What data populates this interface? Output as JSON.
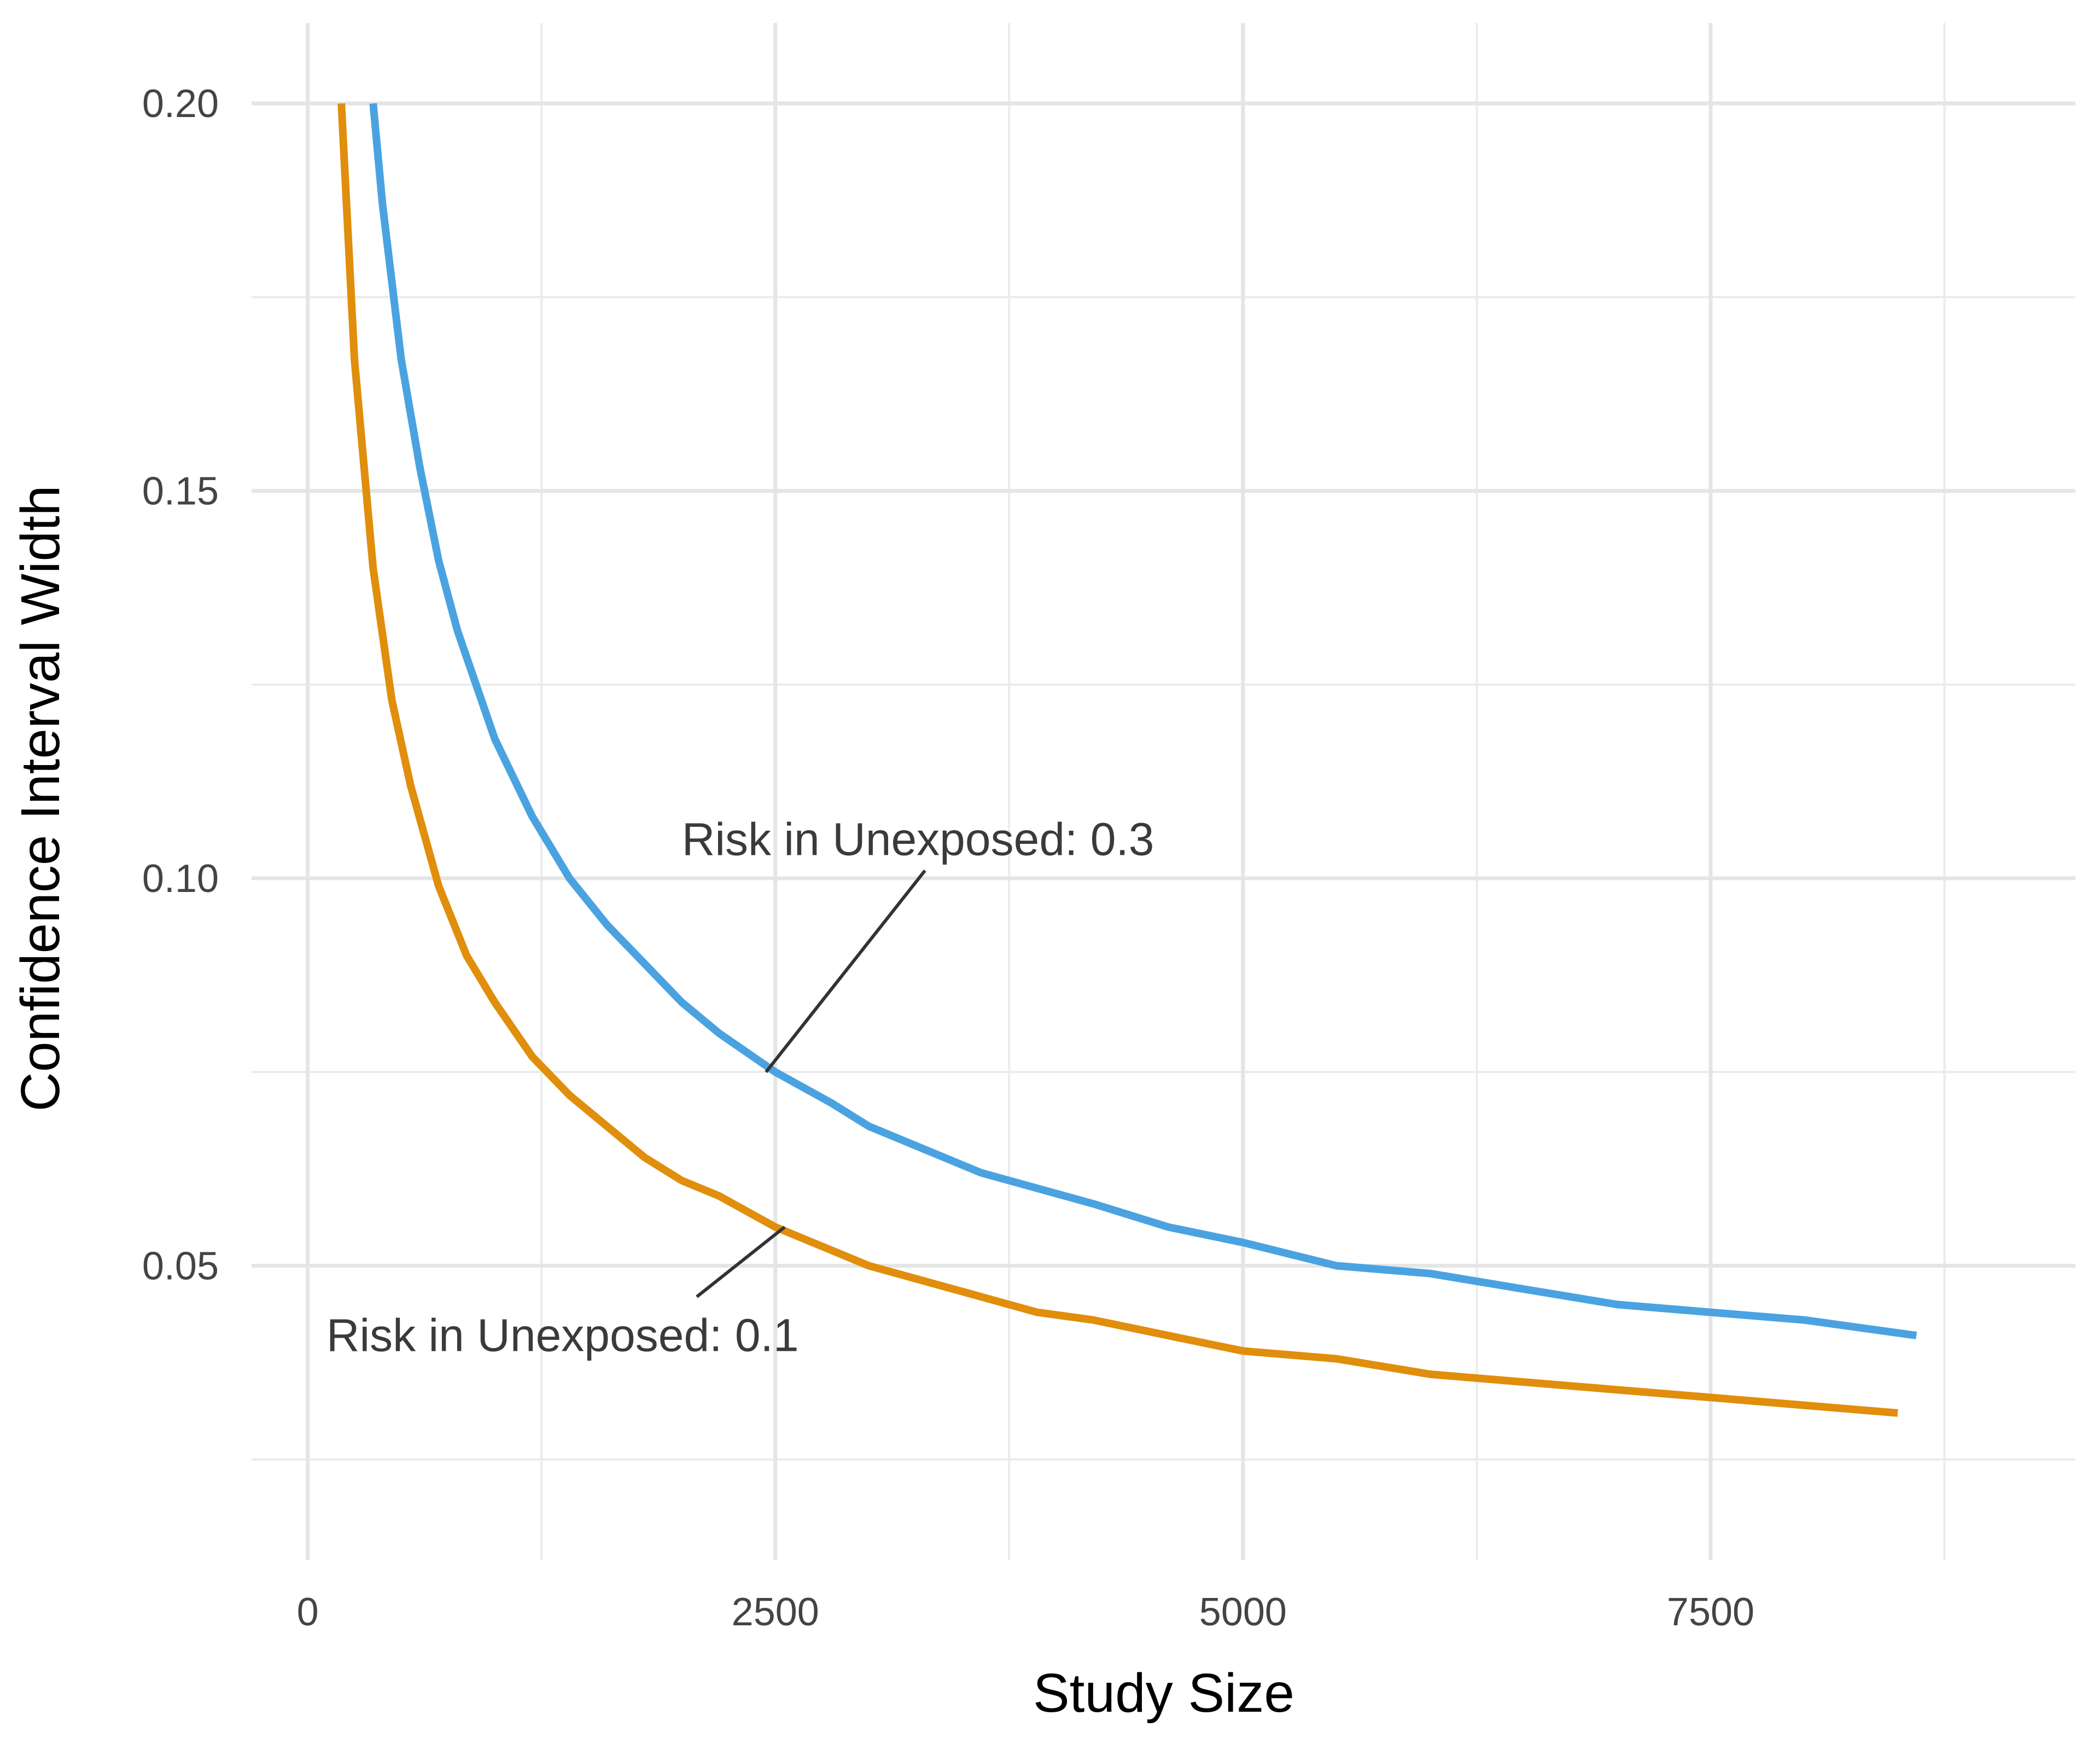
{
  "chart_data": {
    "type": "line",
    "xlabel": "Study Size",
    "ylabel": "Confidence Interval Width",
    "xlim": [
      -300,
      9450
    ],
    "ylim": [
      0.012,
      0.2005
    ],
    "x_major_ticks": [
      0,
      2500,
      5000,
      7500
    ],
    "x_tick_labels": [
      "0",
      "2500",
      "5000",
      "7500"
    ],
    "x_minor_ticks": [
      1250,
      3750,
      6250,
      8750
    ],
    "y_major_ticks": [
      0.05,
      0.1,
      0.15,
      0.2
    ],
    "y_tick_labels": [
      "0.05",
      "0.10",
      "0.15",
      "0.20"
    ],
    "y_minor_ticks": [
      0.025,
      0.075,
      0.125,
      0.175
    ],
    "grid": true,
    "legend": "none",
    "series": [
      {
        "name": "Risk in Unexposed: 0.3",
        "color": "#4aa3e0",
        "x": [
          350,
          400,
          500,
          600,
          700,
          800,
          900,
          1000,
          1200,
          1400,
          1600,
          1800,
          2000,
          2200,
          2500,
          2800,
          3000,
          3300,
          3600,
          3900,
          4200,
          4600,
          5000,
          5500,
          6000,
          6500,
          7000,
          7500,
          8000,
          8600
        ],
        "y": [
          0.2,
          0.187,
          0.167,
          0.153,
          0.141,
          0.132,
          0.125,
          0.118,
          0.108,
          0.1,
          0.094,
          0.089,
          0.084,
          0.08,
          0.075,
          0.071,
          0.068,
          0.065,
          0.062,
          0.06,
          0.058,
          0.055,
          0.053,
          0.05,
          0.049,
          0.047,
          0.045,
          0.044,
          0.043,
          0.041
        ]
      },
      {
        "name": "Risk in Unexposed: 0.1",
        "color": "#e08e0b",
        "x": [
          180,
          250,
          350,
          450,
          550,
          700,
          850,
          1000,
          1200,
          1400,
          1600,
          1800,
          2000,
          2200,
          2500,
          2800,
          3000,
          3300,
          3600,
          3900,
          4200,
          4600,
          5000,
          5500,
          6000,
          6500,
          7000,
          7500,
          8000,
          8500
        ],
        "y": [
          0.2,
          0.167,
          0.14,
          0.123,
          0.112,
          0.099,
          0.09,
          0.084,
          0.077,
          0.072,
          0.068,
          0.064,
          0.061,
          0.059,
          0.055,
          0.052,
          0.05,
          0.048,
          0.046,
          0.044,
          0.043,
          0.041,
          0.039,
          0.038,
          0.036,
          0.035,
          0.034,
          0.033,
          0.032,
          0.031
        ]
      }
    ],
    "annotations": [
      {
        "text": "Risk in Unexposed: 0.3",
        "point": [
          2450,
          0.075
        ],
        "label_at": [
          2000,
          0.103
        ],
        "line_to": [
          3300,
          0.101
        ]
      },
      {
        "text": "Risk in Unexposed: 0.1",
        "point": [
          2550,
          0.055
        ],
        "label_at": [
          100,
          0.039
        ],
        "line_to": [
          2080,
          0.046
        ]
      }
    ]
  }
}
